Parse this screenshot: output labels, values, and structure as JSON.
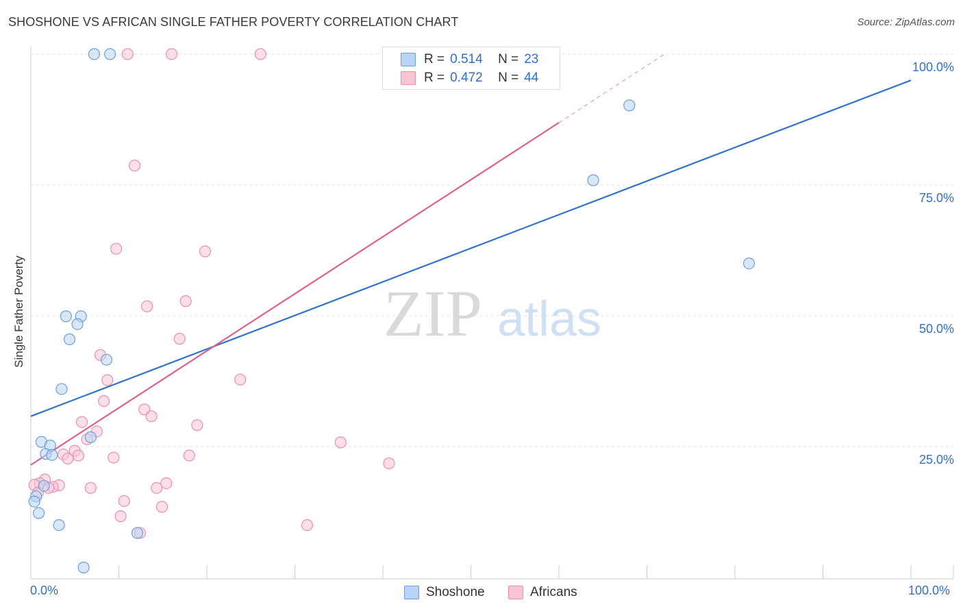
{
  "header": {
    "title": "SHOSHONE VS AFRICAN SINGLE FATHER POVERTY CORRELATION CHART",
    "source": "Source: ZipAtlas.com"
  },
  "watermark": {
    "zip": "ZIP",
    "atlas": "atlas"
  },
  "legend_top": [
    {
      "r_label": "R =",
      "r_value": "0.514",
      "n_label": "N =",
      "n_value": "23"
    },
    {
      "r_label": "R =",
      "r_value": "0.472",
      "n_label": "N =",
      "n_value": "44"
    }
  ],
  "legend_bottom": [
    "Shoshone",
    "Africans"
  ],
  "colors": {
    "shoshone_fill": "#b8d3f5",
    "shoshone_stroke": "#6d9fe0",
    "shoshone_line": "#2f72d0",
    "africans_fill": "#f9c5d5",
    "africans_stroke": "#ec8fab",
    "africans_line": "#e0608a",
    "axis_text": "#2f6fd0",
    "grid": "#e2e2e2"
  },
  "chart_data": {
    "type": "scatter",
    "title": "SHOSHONE VS AFRICAN SINGLE FATHER POVERTY CORRELATION CHART",
    "xlabel": "",
    "ylabel": "Single Father Poverty",
    "x_tick_labels": [
      "0.0%",
      "100.0%"
    ],
    "y_tick_labels": [
      "25.0%",
      "50.0%",
      "75.0%",
      "100.0%"
    ],
    "xlim": [
      0,
      100
    ],
    "ylim": [
      0,
      100
    ],
    "grid": true,
    "legend_placement": "top-center",
    "series": [
      {
        "name": "Shoshone",
        "r": 0.514,
        "n": 23,
        "trend": {
          "x": [
            0,
            100
          ],
          "y": [
            30.8,
            95.0
          ]
        },
        "points": [
          [
            7.2,
            100
          ],
          [
            9.0,
            100
          ],
          [
            68.0,
            90.2
          ],
          [
            63.9,
            75.9
          ],
          [
            81.6,
            60.0
          ],
          [
            4.0,
            49.9
          ],
          [
            5.7,
            49.9
          ],
          [
            5.3,
            48.4
          ],
          [
            4.4,
            45.5
          ],
          [
            8.6,
            41.6
          ],
          [
            3.5,
            36.0
          ],
          [
            1.2,
            25.9
          ],
          [
            2.2,
            25.2
          ],
          [
            1.7,
            23.6
          ],
          [
            2.4,
            23.4
          ],
          [
            6.8,
            26.8
          ],
          [
            1.5,
            17.5
          ],
          [
            0.6,
            15.5
          ],
          [
            0.4,
            14.5
          ],
          [
            0.9,
            12.3
          ],
          [
            3.2,
            10.0
          ],
          [
            12.1,
            8.5
          ],
          [
            6.0,
            1.9
          ]
        ]
      },
      {
        "name": "Africans",
        "r": 0.472,
        "n": 44,
        "trend": {
          "x": [
            0,
            60
          ],
          "y": [
            21.5,
            86.9
          ]
        },
        "trend_dashed": {
          "x": [
            60,
            72
          ],
          "y": [
            86.9,
            100
          ]
        },
        "points": [
          [
            11.0,
            100
          ],
          [
            16.0,
            100
          ],
          [
            26.1,
            100
          ],
          [
            41.6,
            100
          ],
          [
            55.3,
            100
          ],
          [
            11.8,
            78.7
          ],
          [
            9.7,
            62.8
          ],
          [
            19.8,
            62.3
          ],
          [
            17.6,
            52.8
          ],
          [
            13.2,
            51.8
          ],
          [
            16.9,
            45.6
          ],
          [
            7.9,
            42.5
          ],
          [
            23.8,
            37.8
          ],
          [
            8.7,
            37.7
          ],
          [
            8.3,
            33.7
          ],
          [
            12.9,
            32.1
          ],
          [
            13.7,
            30.8
          ],
          [
            5.8,
            29.7
          ],
          [
            18.9,
            29.1
          ],
          [
            7.5,
            27.9
          ],
          [
            6.4,
            26.4
          ],
          [
            35.2,
            25.8
          ],
          [
            5.0,
            24.2
          ],
          [
            3.7,
            23.5
          ],
          [
            5.4,
            23.3
          ],
          [
            18.0,
            23.3
          ],
          [
            9.4,
            22.9
          ],
          [
            4.2,
            22.7
          ],
          [
            40.7,
            21.8
          ],
          [
            1.6,
            18.7
          ],
          [
            1.0,
            18.0
          ],
          [
            0.4,
            17.7
          ],
          [
            3.2,
            17.6
          ],
          [
            2.5,
            17.3
          ],
          [
            2.0,
            17.1
          ],
          [
            6.8,
            17.1
          ],
          [
            14.3,
            17.1
          ],
          [
            15.4,
            18.0
          ],
          [
            0.8,
            16.2
          ],
          [
            10.6,
            14.6
          ],
          [
            14.9,
            13.5
          ],
          [
            10.2,
            11.7
          ],
          [
            31.4,
            10.0
          ],
          [
            12.4,
            8.5
          ]
        ]
      }
    ]
  }
}
